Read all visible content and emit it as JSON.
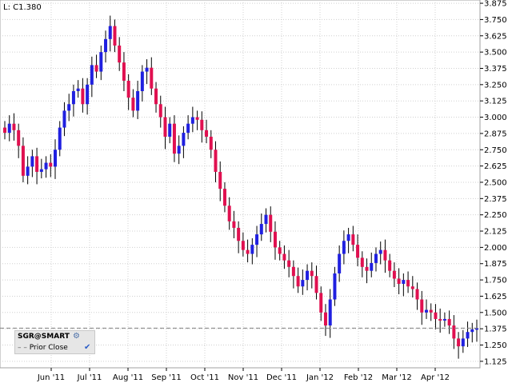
{
  "price_label": "L: C1.380",
  "legend": {
    "symbol": "SGR@SMART",
    "prior_close_label": "Prior Close",
    "gear_icon": "gear-icon",
    "check_icon": "check-icon"
  },
  "colors": {
    "up": "#2020e0",
    "down": "#e01050",
    "wick": "#000000",
    "grid": "#d0d0d0",
    "prior_close": "#808080"
  },
  "chart_data": {
    "type": "candlestick",
    "title": "",
    "xlabel": "",
    "ylabel": "",
    "ylim": [
      1.075,
      3.9
    ],
    "y_ticks": [
      3.875,
      3.75,
      3.625,
      3.5,
      3.375,
      3.25,
      3.125,
      3.0,
      2.875,
      2.75,
      2.625,
      2.5,
      2.375,
      2.25,
      2.125,
      2.0,
      1.875,
      1.75,
      1.625,
      1.5,
      1.375,
      1.25,
      1.125
    ],
    "y_tick_labels": [
      "3.875",
      "3.750",
      "3.625",
      "3.500",
      "3.375",
      "3.250",
      "3.125",
      "3.000",
      "2.875",
      "2.750",
      "2.625",
      "2.500",
      "2.375",
      "2.250",
      "2.125",
      "2.000",
      "1.875",
      "1.750",
      "1.625",
      "1.500",
      "1.375",
      "1.250",
      "1.125"
    ],
    "x_tick_labels": [
      "Jun '11",
      "Jul '11",
      "Aug '11",
      "Sep '11",
      "Oct '11",
      "Nov '11",
      "Dec '11",
      "Jan '12",
      "Feb '12",
      "Mar '12",
      "Apr '12"
    ],
    "prior_close": 1.38,
    "last_close": 1.38,
    "closes": [
      2.88,
      2.95,
      2.9,
      2.78,
      2.55,
      2.62,
      2.7,
      2.58,
      2.6,
      2.65,
      2.62,
      2.75,
      2.92,
      3.05,
      3.1,
      3.2,
      3.22,
      3.1,
      3.25,
      3.4,
      3.35,
      3.5,
      3.6,
      3.7,
      3.55,
      3.42,
      3.28,
      3.15,
      3.05,
      3.2,
      3.35,
      3.38,
      3.22,
      3.1,
      3.0,
      2.85,
      2.95,
      2.72,
      2.78,
      2.88,
      2.95,
      3.0,
      2.98,
      2.9,
      2.85,
      2.75,
      2.58,
      2.45,
      2.32,
      2.2,
      2.15,
      2.05,
      1.98,
      1.95,
      2.02,
      2.1,
      2.18,
      2.25,
      2.12,
      2.0,
      1.95,
      1.9,
      1.85,
      1.78,
      1.7,
      1.75,
      1.82,
      1.78,
      1.65,
      1.5,
      1.4,
      1.6,
      1.8,
      1.95,
      2.05,
      2.1,
      2.02,
      1.92,
      1.85,
      1.82,
      1.88,
      1.95,
      1.98,
      1.9,
      1.82,
      1.76,
      1.72,
      1.75,
      1.7,
      1.68,
      1.6,
      1.5,
      1.52,
      1.5,
      1.45,
      1.44,
      1.45,
      1.4,
      1.3,
      1.24,
      1.3,
      1.35,
      1.37,
      1.38
    ]
  }
}
